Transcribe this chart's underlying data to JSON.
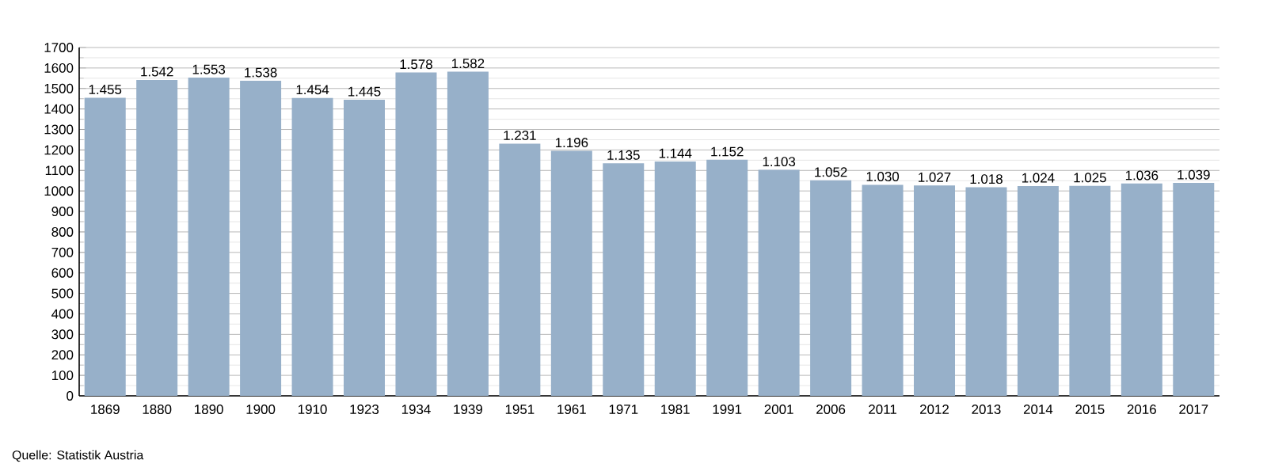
{
  "chart_data": {
    "type": "bar",
    "categories": [
      "1869",
      "1880",
      "1890",
      "1900",
      "1910",
      "1923",
      "1934",
      "1939",
      "1951",
      "1961",
      "1971",
      "1981",
      "1991",
      "2001",
      "2006",
      "2011",
      "2012",
      "2013",
      "2014",
      "2015",
      "2016",
      "2017"
    ],
    "values": [
      1455,
      1542,
      1553,
      1538,
      1454,
      1445,
      1578,
      1582,
      1231,
      1196,
      1135,
      1144,
      1152,
      1103,
      1052,
      1030,
      1027,
      1018,
      1024,
      1025,
      1036,
      1039
    ],
    "value_labels": [
      "1.455",
      "1.542",
      "1.553",
      "1.538",
      "1.454",
      "1.445",
      "1.578",
      "1.582",
      "1.231",
      "1.196",
      "1.135",
      "1.144",
      "1.152",
      "1.103",
      "1.052",
      "1.030",
      "1.027",
      "1.018",
      "1.024",
      "1.025",
      "1.036",
      "1.039"
    ],
    "color": "#97b0c9",
    "ylim": [
      0,
      1700
    ],
    "yticks": [
      0,
      100,
      200,
      300,
      400,
      500,
      600,
      700,
      800,
      900,
      1000,
      1100,
      1200,
      1300,
      1400,
      1500,
      1600,
      1700
    ],
    "grid": "y",
    "annotations": [
      "Quelle: Statistik Austria"
    ]
  }
}
